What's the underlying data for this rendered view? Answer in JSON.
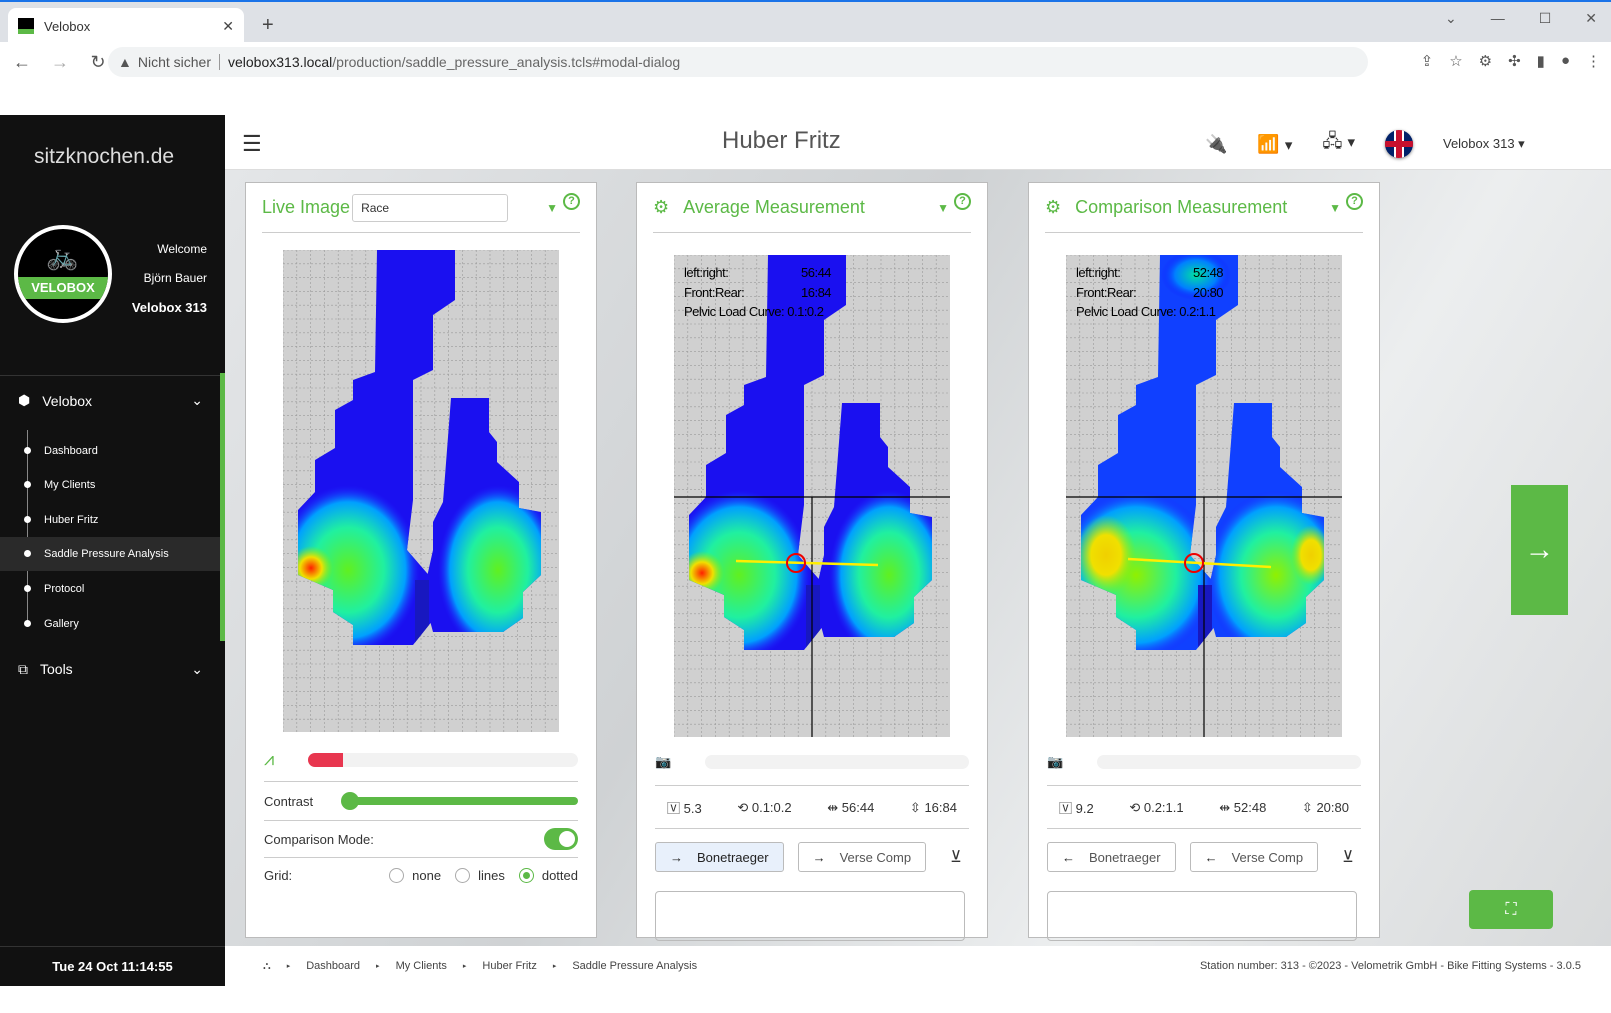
{
  "browser": {
    "tab_title": "Velobox",
    "security": "Nicht sicher",
    "url_host": "velobox313.local",
    "url_path": "/production/saddle_pressure_analysis.tcls#modal-dialog"
  },
  "sidebar": {
    "brand": "sitzknochen.de",
    "logo_text": "VELOBOX",
    "welcome": "Welcome",
    "user": "Björn Bauer",
    "station": "Velobox 313",
    "groups": [
      {
        "label": "Velobox",
        "icon": "cube-icon"
      },
      {
        "label": "Tools",
        "icon": "toolbox-icon"
      }
    ],
    "items": [
      {
        "label": "Dashboard"
      },
      {
        "label": "My Clients"
      },
      {
        "label": "Huber Fritz"
      },
      {
        "label": "Saddle Pressure Analysis",
        "active": true
      },
      {
        "label": "Protocol"
      },
      {
        "label": "Gallery"
      }
    ],
    "clock": "Tue 24 Oct 11:14:55"
  },
  "header": {
    "title": "Huber Fritz",
    "device": "Velobox 313"
  },
  "panels": {
    "live": {
      "title": "Live Image",
      "select": "Race",
      "progress": 0.13,
      "contrast_label": "Contrast",
      "contrast": 0.0,
      "comparison_label": "Comparison Mode:",
      "comparison_on": true,
      "grid_label": "Grid:",
      "grid_options": [
        "none",
        "lines",
        "dotted"
      ],
      "grid_selected": "dotted"
    },
    "average": {
      "title": "Average Measurement",
      "lr_label": "left:right:",
      "lr": "56:44",
      "fr_label": "Front:Rear:",
      "fr": "16:84",
      "plc_label": "Pelvic Load Curve:",
      "plc": "0.1:0.2",
      "stat_v": "5.3",
      "stat_plc": "0.1:0.2",
      "stat_lr": "56:44",
      "stat_fr": "16:84",
      "btn1": "Bonetraeger",
      "btn2": "Verse Comp"
    },
    "comparison": {
      "title": "Comparison Measurement",
      "lr_label": "left:right:",
      "lr": "52:48",
      "fr_label": "Front:Rear:",
      "fr": "20:80",
      "plc_label": "Pelvic Load Curve:",
      "plc": "0.2:1.1",
      "stat_v": "9.2",
      "stat_plc": "0.2:1.1",
      "stat_lr": "52:48",
      "stat_fr": "20:80",
      "btn1": "Bonetraeger",
      "btn2": "Verse Comp"
    }
  },
  "footer": {
    "crumbs": [
      "Dashboard",
      "My Clients",
      "Huber Fritz",
      "Saddle Pressure Analysis"
    ],
    "station": "Station number: 313 - ©2023 - Velometrik GmbH - Bike Fitting Systems - 3.0.5"
  },
  "colors": {
    "accent": "#5cb946",
    "progress": "#e8364f",
    "sidebar": "#111111"
  }
}
